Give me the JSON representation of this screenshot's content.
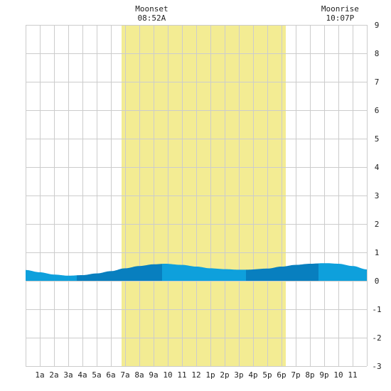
{
  "colors": {
    "background": "#ffffff",
    "grid": "#cccccc",
    "daylight": "#f3ec93",
    "tide_light": "#0ea0dc",
    "tide_dark": "#087fbf",
    "axis_text": "#222222"
  },
  "chart_data": {
    "type": "area",
    "title": "",
    "xlabel": "",
    "ylabel": "",
    "x_range_hours": [
      0,
      24
    ],
    "ylim": [
      -3,
      9
    ],
    "y_ticks": [
      "-3",
      "-2",
      "-1",
      "0",
      "1",
      "2",
      "3",
      "4",
      "5",
      "6",
      "7",
      "8",
      "9"
    ],
    "x_ticks": [
      {
        "hour": 1,
        "label": "1a"
      },
      {
        "hour": 2,
        "label": "2a"
      },
      {
        "hour": 3,
        "label": "3a"
      },
      {
        "hour": 4,
        "label": "4a"
      },
      {
        "hour": 5,
        "label": "5a"
      },
      {
        "hour": 6,
        "label": "6a"
      },
      {
        "hour": 7,
        "label": "7a"
      },
      {
        "hour": 8,
        "label": "8a"
      },
      {
        "hour": 9,
        "label": "9a"
      },
      {
        "hour": 10,
        "label": "10"
      },
      {
        "hour": 11,
        "label": "11"
      },
      {
        "hour": 12,
        "label": "12"
      },
      {
        "hour": 13,
        "label": "1p"
      },
      {
        "hour": 14,
        "label": "2p"
      },
      {
        "hour": 15,
        "label": "3p"
      },
      {
        "hour": 16,
        "label": "4p"
      },
      {
        "hour": 17,
        "label": "5p"
      },
      {
        "hour": 18,
        "label": "6p"
      },
      {
        "hour": 19,
        "label": "7p"
      },
      {
        "hour": 20,
        "label": "8p"
      },
      {
        "hour": 21,
        "label": "9p"
      },
      {
        "hour": 22,
        "label": "10"
      },
      {
        "hour": 23,
        "label": "11"
      }
    ],
    "daylight": {
      "start_hour": 6.75,
      "end_hour": 18.3
    },
    "grid": true,
    "tide_series": {
      "hours": [
        0,
        1,
        2,
        3,
        4,
        5,
        6,
        7,
        8,
        9,
        9.8,
        11,
        12,
        13,
        14,
        15,
        15.5,
        17,
        18,
        19,
        20,
        21,
        21.2,
        22,
        23,
        24
      ],
      "heights": [
        0.38,
        0.3,
        0.22,
        0.18,
        0.2,
        0.26,
        0.34,
        0.44,
        0.52,
        0.58,
        0.6,
        0.56,
        0.5,
        0.44,
        0.41,
        0.39,
        0.39,
        0.43,
        0.5,
        0.56,
        0.6,
        0.62,
        0.62,
        0.6,
        0.52,
        0.4
      ]
    },
    "tide_bands": [
      {
        "start_hour": 0,
        "end_hour": 3.6,
        "tone": "light"
      },
      {
        "start_hour": 3.6,
        "end_hour": 9.6,
        "tone": "dark"
      },
      {
        "start_hour": 9.6,
        "end_hour": 15.5,
        "tone": "light"
      },
      {
        "start_hour": 15.5,
        "end_hour": 20.6,
        "tone": "dark"
      },
      {
        "start_hour": 20.6,
        "end_hour": 24,
        "tone": "light"
      }
    ],
    "annotations": [
      {
        "name": "moonset",
        "label": "Moonset",
        "time": "08:52A",
        "hour": 8.87
      },
      {
        "name": "moonrise",
        "label": "Moonrise",
        "time": "10:07P",
        "hour": 22.12
      }
    ]
  }
}
